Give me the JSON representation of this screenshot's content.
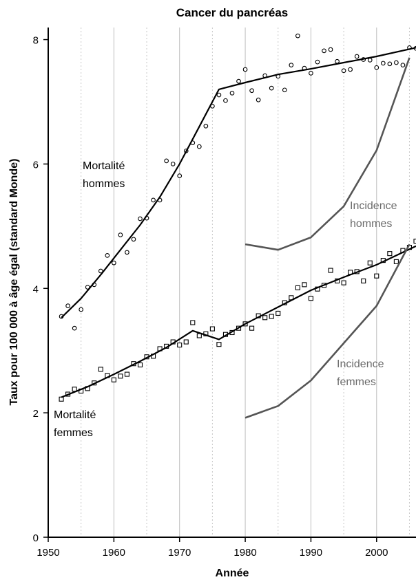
{
  "chart_data": {
    "type": "line",
    "title": "Cancer du pancréas",
    "xlabel": "Année",
    "ylabel": "Taux pour 100 000 à âge égal (standard Monde)",
    "xlim": [
      1950,
      2006
    ],
    "ylim": [
      0,
      8.15
    ],
    "x_ticks": [
      1950,
      1960,
      1970,
      1980,
      1990,
      2000
    ],
    "y_ticks": [
      0,
      2,
      4,
      6,
      8
    ],
    "x_minor_gridlines": [
      1955,
      1965,
      1975,
      1985,
      1995,
      2005
    ],
    "x_major_gridlines": [
      1960,
      1970,
      1980,
      1990,
      2000
    ],
    "series": [
      {
        "name": "Mortalité hommes",
        "style": "points-circle",
        "color": "#000000",
        "x": [
          1952,
          1953,
          1954,
          1955,
          1956,
          1957,
          1958,
          1959,
          1960,
          1961,
          1962,
          1963,
          1964,
          1965,
          1966,
          1967,
          1968,
          1969,
          1970,
          1971,
          1972,
          1973,
          1974,
          1975,
          1976,
          1977,
          1978,
          1979,
          1980,
          1981,
          1982,
          1983,
          1984,
          1985,
          1986,
          1987,
          1988,
          1989,
          1990,
          1991,
          1992,
          1993,
          1994,
          1995,
          1996,
          1997,
          1998,
          1999,
          2000,
          2001,
          2002,
          2003,
          2004,
          2005,
          2006
        ],
        "values": [
          3.55,
          3.72,
          3.36,
          3.66,
          4.02,
          4.06,
          4.28,
          4.53,
          4.41,
          4.86,
          4.58,
          4.79,
          5.12,
          5.13,
          5.42,
          5.42,
          6.05,
          6.0,
          5.81,
          6.21,
          6.34,
          6.28,
          6.61,
          6.93,
          7.11,
          7.02,
          7.14,
          7.33,
          7.52,
          7.18,
          7.03,
          7.42,
          7.22,
          7.41,
          7.19,
          7.59,
          8.06,
          7.54,
          7.46,
          7.64,
          7.82,
          7.84,
          7.65,
          7.5,
          7.52,
          7.73,
          7.68,
          7.67,
          7.55,
          7.62,
          7.61,
          7.63,
          7.59,
          7.87,
          7.86
        ]
      },
      {
        "name": "Mortalité hommes",
        "style": "fit-line",
        "color": "#000000",
        "x": [
          1952,
          1955,
          1958,
          1961,
          1964,
          1967,
          1970,
          1973,
          1976,
          1980,
          1985,
          1990,
          1995,
          2000,
          2006
        ],
        "values": [
          3.53,
          3.84,
          4.22,
          4.62,
          5.02,
          5.47,
          6.0,
          6.6,
          7.2,
          7.31,
          7.44,
          7.53,
          7.63,
          7.73,
          7.87
        ]
      },
      {
        "name": "Mortalité femmes",
        "style": "points-square",
        "color": "#000000",
        "x": [
          1952,
          1953,
          1954,
          1955,
          1956,
          1957,
          1958,
          1959,
          1960,
          1961,
          1962,
          1963,
          1964,
          1965,
          1966,
          1967,
          1968,
          1969,
          1970,
          1971,
          1972,
          1973,
          1974,
          1975,
          1976,
          1977,
          1978,
          1979,
          1980,
          1981,
          1982,
          1983,
          1984,
          1985,
          1986,
          1987,
          1988,
          1989,
          1990,
          1991,
          1992,
          1993,
          1994,
          1995,
          1996,
          1997,
          1998,
          1999,
          2000,
          2001,
          2002,
          2003,
          2004,
          2005,
          2006
        ],
        "values": [
          2.22,
          2.3,
          2.38,
          2.35,
          2.39,
          2.48,
          2.7,
          2.6,
          2.53,
          2.59,
          2.62,
          2.79,
          2.77,
          2.9,
          2.91,
          3.03,
          3.07,
          3.14,
          3.09,
          3.14,
          3.45,
          3.24,
          3.27,
          3.35,
          3.1,
          3.26,
          3.29,
          3.36,
          3.43,
          3.36,
          3.56,
          3.53,
          3.55,
          3.6,
          3.77,
          3.85,
          4.01,
          4.06,
          3.84,
          3.99,
          4.05,
          4.29,
          4.12,
          4.09,
          4.26,
          4.27,
          4.12,
          4.41,
          4.2,
          4.45,
          4.56,
          4.43,
          4.61,
          4.66,
          4.76
        ]
      },
      {
        "name": "Mortalité femmes",
        "style": "fit-line",
        "color": "#000000",
        "x": [
          1952,
          1956,
          1960,
          1964,
          1968,
          1972,
          1976,
          1980,
          1985,
          1990,
          1995,
          2000,
          2006
        ],
        "values": [
          2.25,
          2.42,
          2.62,
          2.83,
          3.05,
          3.32,
          3.18,
          3.43,
          3.7,
          3.97,
          4.18,
          4.38,
          4.68
        ]
      },
      {
        "name": "Incidence hommes",
        "style": "line",
        "color": "#555555",
        "x": [
          1980,
          1985,
          1990,
          1995,
          2000,
          2005
        ],
        "values": [
          4.71,
          4.62,
          4.82,
          5.32,
          6.22,
          7.71
        ]
      },
      {
        "name": "Incidence femmes",
        "style": "line",
        "color": "#555555",
        "x": [
          1980,
          1985,
          1990,
          1995,
          2000,
          2005
        ],
        "values": [
          1.92,
          2.11,
          2.52,
          3.12,
          3.72,
          4.71
        ]
      }
    ],
    "annotations": {
      "mort_hommes": [
        "Mortalité",
        "hommes"
      ],
      "mort_femmes": [
        "Mortalité",
        "femmes"
      ],
      "inc_hommes": [
        "Incidence",
        "hommes"
      ],
      "inc_femmes": [
        "Incidence",
        "femmes"
      ]
    },
    "grid": "vertical",
    "colors": {
      "mortality": "#000000",
      "incidence": "#555555",
      "incidence_text": "#6b6b6b",
      "grid_major": "#bdbdbd",
      "grid_minor": "#c8c8c8"
    }
  }
}
